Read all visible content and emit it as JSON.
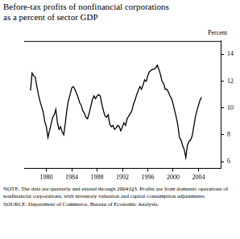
{
  "chart_data": {
    "type": "line",
    "title": [
      "Before-tax profits of nonfinancial corporations",
      "as a percent of sector GDP"
    ],
    "y_label": "Percent",
    "note": "NOTE. The data are quarterly and extend through 2004:Q3. Profits are from domestic operations of nonfinancial corporations, with inventory valuation and capital consumption adjustments.",
    "source": "SOURCE. Department of Commerce, Bureau of Economic Analysis.",
    "x": [
      1977.5,
      1977.75,
      1978,
      1978.25,
      1978.5,
      1978.75,
      1979,
      1979.25,
      1979.5,
      1979.75,
      1980,
      1980.25,
      1980.5,
      1980.75,
      1981,
      1981.25,
      1981.5,
      1981.75,
      1982,
      1982.25,
      1982.5,
      1982.75,
      1983,
      1983.25,
      1983.5,
      1983.75,
      1984,
      1984.25,
      1984.5,
      1984.75,
      1985,
      1985.25,
      1985.5,
      1985.75,
      1986,
      1986.25,
      1986.5,
      1986.75,
      1987,
      1987.25,
      1987.5,
      1987.75,
      1988,
      1988.25,
      1988.5,
      1988.75,
      1989,
      1989.25,
      1989.5,
      1989.75,
      1990,
      1990.25,
      1990.5,
      1990.75,
      1991,
      1991.25,
      1991.5,
      1991.75,
      1992,
      1992.25,
      1992.5,
      1992.75,
      1993,
      1993.25,
      1993.5,
      1993.75,
      1994,
      1994.25,
      1994.5,
      1994.75,
      1995,
      1995.25,
      1995.5,
      1995.75,
      1996,
      1996.25,
      1996.5,
      1996.75,
      1997,
      1997.25,
      1997.5,
      1997.75,
      1998,
      1998.25,
      1998.5,
      1998.75,
      1999,
      1999.25,
      1999.5,
      1999.75,
      2000,
      2000.25,
      2000.5,
      2000.75,
      2001,
      2001.25,
      2001.5,
      2001.75,
      2002,
      2002.25,
      2002.5,
      2002.75,
      2003,
      2003.25,
      2003.5,
      2003.75,
      2004,
      2004.25,
      2004.5
    ],
    "values": [
      11.3,
      12.6,
      12.4,
      12.3,
      11.6,
      11.0,
      10.5,
      10.1,
      9.7,
      9.0,
      8.6,
      7.8,
      8.3,
      8.8,
      9.3,
      9.5,
      9.9,
      8.9,
      8.4,
      8.6,
      8.2,
      8.0,
      8.9,
      9.9,
      10.6,
      11.0,
      11.5,
      11.6,
      11.4,
      11.1,
      10.8,
      10.4,
      10.2,
      9.8,
      9.6,
      9.3,
      9.2,
      9.6,
      10.1,
      10.6,
      10.9,
      10.7,
      10.9,
      11.0,
      10.9,
      10.3,
      9.8,
      9.4,
      9.3,
      9.5,
      8.8,
      8.6,
      8.7,
      8.4,
      8.5,
      8.7,
      8.6,
      8.3,
      8.6,
      8.9,
      8.7,
      9.2,
      9.4,
      9.6,
      9.8,
      10.3,
      10.6,
      11.0,
      11.3,
      11.6,
      11.4,
      11.7,
      12.1,
      12.0,
      12.4,
      12.7,
      12.8,
      12.9,
      12.9,
      13.0,
      13.2,
      12.9,
      12.5,
      12.0,
      11.8,
      11.4,
      11.4,
      11.2,
      10.9,
      10.7,
      10.3,
      9.8,
      9.3,
      8.7,
      7.8,
      7.6,
      7.2,
      6.9,
      6.3,
      7.2,
      7.5,
      7.6,
      7.9,
      8.6,
      9.3,
      9.8,
      10.2,
      10.6,
      10.8
    ],
    "color": "#000000",
    "xlim": [
      1976.5,
      2007.5
    ],
    "xticks": [
      1980,
      1984,
      1988,
      1992,
      1996,
      2000,
      2004
    ],
    "ylim": [
      5.5,
      15
    ],
    "yticks": [
      6,
      8,
      10,
      12,
      14
    ],
    "grid": false
  }
}
